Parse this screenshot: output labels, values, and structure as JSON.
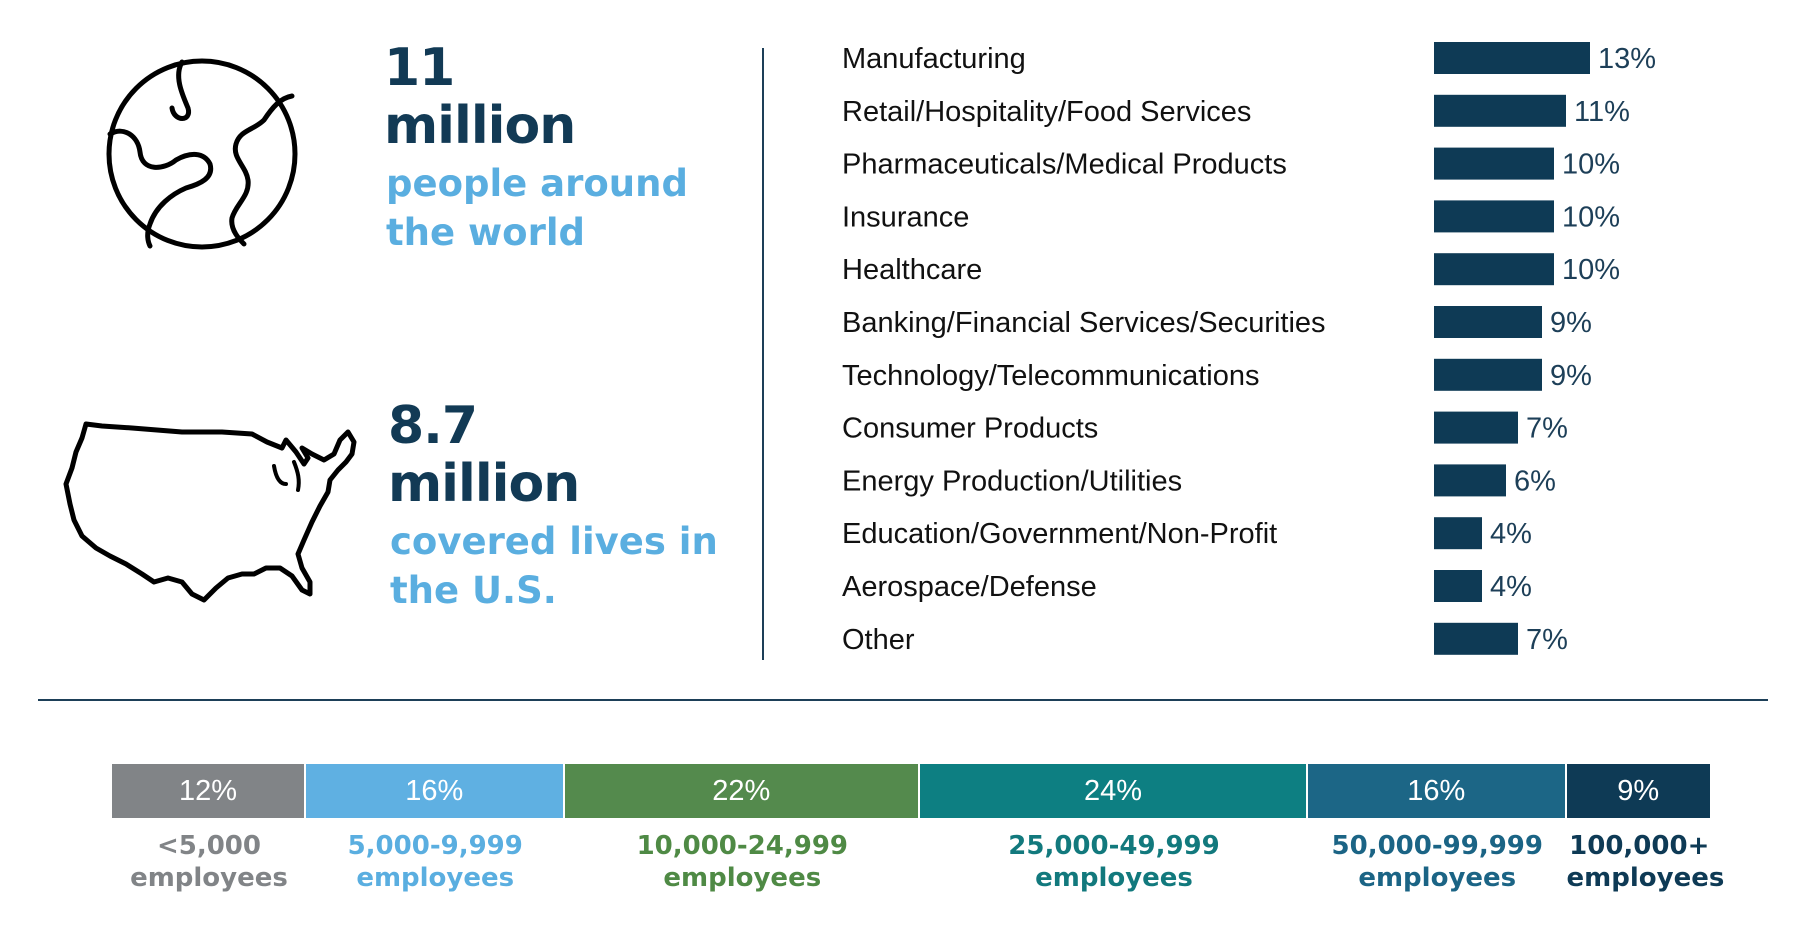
{
  "stats": [
    {
      "number": "11",
      "unit": "million",
      "line1": "people around",
      "line2": "the world",
      "icon": "globe-icon"
    },
    {
      "number": "8.7",
      "unit": "million",
      "line1": "covered lives in",
      "line2": "the U.S.",
      "icon": "us-map-icon"
    }
  ],
  "colors": {
    "navy": "#123a55",
    "light_blue": "#5aaee0",
    "bar": "#0e3a55"
  },
  "chart_data": [
    {
      "type": "bar",
      "orientation": "horizontal",
      "categories": [
        "Manufacturing",
        "Retail/Hospitality/Food Services",
        "Pharmaceuticals/Medical Products",
        "Insurance",
        "Healthcare",
        "Banking/Financial Services/Securities",
        "Technology/Telecommunications",
        "Consumer Products",
        "Energy Production/Utilities",
        "Education/Government/Non-Profit",
        "Aerospace/Defense",
        "Other"
      ],
      "values": [
        13,
        11,
        10,
        10,
        10,
        9,
        9,
        7,
        6,
        4,
        4,
        7
      ],
      "value_labels": [
        "13%",
        "11%",
        "10%",
        "10%",
        "10%",
        "9%",
        "9%",
        "7%",
        "6%",
        "4%",
        "4%",
        "7%"
      ],
      "title": "",
      "xlabel": "",
      "ylabel": "",
      "grid": false
    },
    {
      "type": "bar",
      "orientation": "stacked-horizontal",
      "categories": [
        "<5,000 employees",
        "5,000-9,999 employees",
        "10,000-24,999 employees",
        "25,000-49,999 employees",
        "50,000-99,999 employees",
        "100,000+ employees"
      ],
      "values": [
        12,
        16,
        22,
        24,
        16,
        9
      ],
      "segments": [
        {
          "pct": "12%",
          "line1": "<5,000",
          "line2": "employees",
          "color": "#818487",
          "label_color": "#818487"
        },
        {
          "pct": "16%",
          "line1": "5,000-9,999",
          "line2": "employees",
          "color": "#5fb0e2",
          "label_color": "#5aaee0"
        },
        {
          "pct": "22%",
          "line1": "10,000-24,999",
          "line2": "employees",
          "color": "#548a4d",
          "label_color": "#4f8a45"
        },
        {
          "pct": "24%",
          "line1": "25,000-49,999",
          "line2": "employees",
          "color": "#0d7f82",
          "label_color": "#12797d"
        },
        {
          "pct": "16%",
          "line1": "50,000-99,999",
          "line2": "employees",
          "color": "#1c6686",
          "label_color": "#1b6485"
        },
        {
          "pct": "9%",
          "line1": "100,000+",
          "line2": "employees",
          "color": "#0e3a55",
          "label_color": "#0e3a55"
        }
      ],
      "title": "",
      "xlabel": "",
      "ylabel": ""
    }
  ]
}
